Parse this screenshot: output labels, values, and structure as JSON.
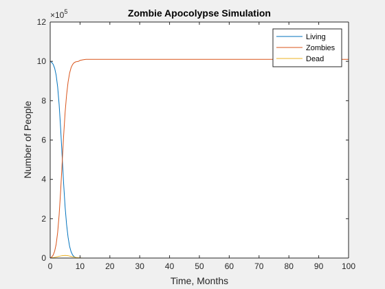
{
  "chart_data": {
    "type": "line",
    "title": "Zombie Apocolypse Simulation",
    "xlabel": "Time, Months",
    "ylabel": "Number of People",
    "xlim": [
      0,
      100
    ],
    "ylim": [
      0,
      12
    ],
    "y_exponent_label": "×10",
    "y_exponent_value": "5",
    "xticks": [
      "0",
      "10",
      "20",
      "30",
      "40",
      "50",
      "60",
      "70",
      "80",
      "90",
      "100"
    ],
    "yticks": [
      "0",
      "2",
      "4",
      "6",
      "8",
      "10",
      "12"
    ],
    "grid": false,
    "legend_position": "top-right",
    "series": [
      {
        "name": "Living",
        "color": "#0072BD",
        "x": [
          0,
          0.5,
          1,
          1.5,
          2,
          2.5,
          3,
          3.5,
          4,
          4.5,
          5,
          5.5,
          6,
          6.5,
          7,
          7.5,
          8,
          8.5,
          9,
          9.5,
          10,
          11,
          12,
          15,
          20,
          30,
          40,
          50,
          60,
          70,
          80,
          90,
          100
        ],
        "values": [
          10.0,
          9.95,
          9.85,
          9.65,
          9.3,
          8.7,
          7.8,
          6.6,
          5.2,
          3.8,
          2.6,
          1.7,
          1.05,
          0.6,
          0.32,
          0.16,
          0.07,
          0.03,
          0.01,
          0.0,
          0.0,
          0.0,
          0.0,
          0.0,
          0.0,
          0.0,
          0.0,
          0.0,
          0.0,
          0.0,
          0.0,
          0.0,
          0.0
        ]
      },
      {
        "name": "Zombies",
        "color": "#D95319",
        "x": [
          0,
          0.5,
          1,
          1.5,
          2,
          2.5,
          3,
          3.5,
          4,
          4.5,
          5,
          5.5,
          6,
          6.5,
          7,
          7.5,
          8,
          8.5,
          9,
          9.5,
          10,
          11,
          12,
          15,
          20,
          30,
          40,
          50,
          60,
          70,
          80,
          90,
          100
        ],
        "values": [
          0.0,
          0.05,
          0.15,
          0.35,
          0.7,
          1.3,
          2.2,
          3.4,
          4.8,
          6.2,
          7.4,
          8.3,
          8.95,
          9.4,
          9.68,
          9.84,
          9.93,
          9.97,
          9.99,
          10.0,
          10.05,
          10.08,
          10.1,
          10.1,
          10.1,
          10.1,
          10.1,
          10.1,
          10.1,
          10.1,
          10.1,
          10.1,
          10.1
        ]
      },
      {
        "name": "Dead",
        "color": "#EDB120",
        "x": [
          0,
          1,
          2,
          3,
          4,
          5,
          6,
          7,
          8,
          9,
          10,
          11,
          12,
          20,
          30,
          40,
          50,
          60,
          70,
          80,
          90,
          100
        ],
        "values": [
          0.0,
          0.02,
          0.05,
          0.09,
          0.12,
          0.13,
          0.12,
          0.08,
          0.05,
          0.02,
          0.01,
          0.0,
          0.0,
          0.0,
          0.0,
          0.0,
          0.0,
          0.0,
          0.0,
          0.0,
          0.0,
          0.0
        ]
      }
    ]
  }
}
